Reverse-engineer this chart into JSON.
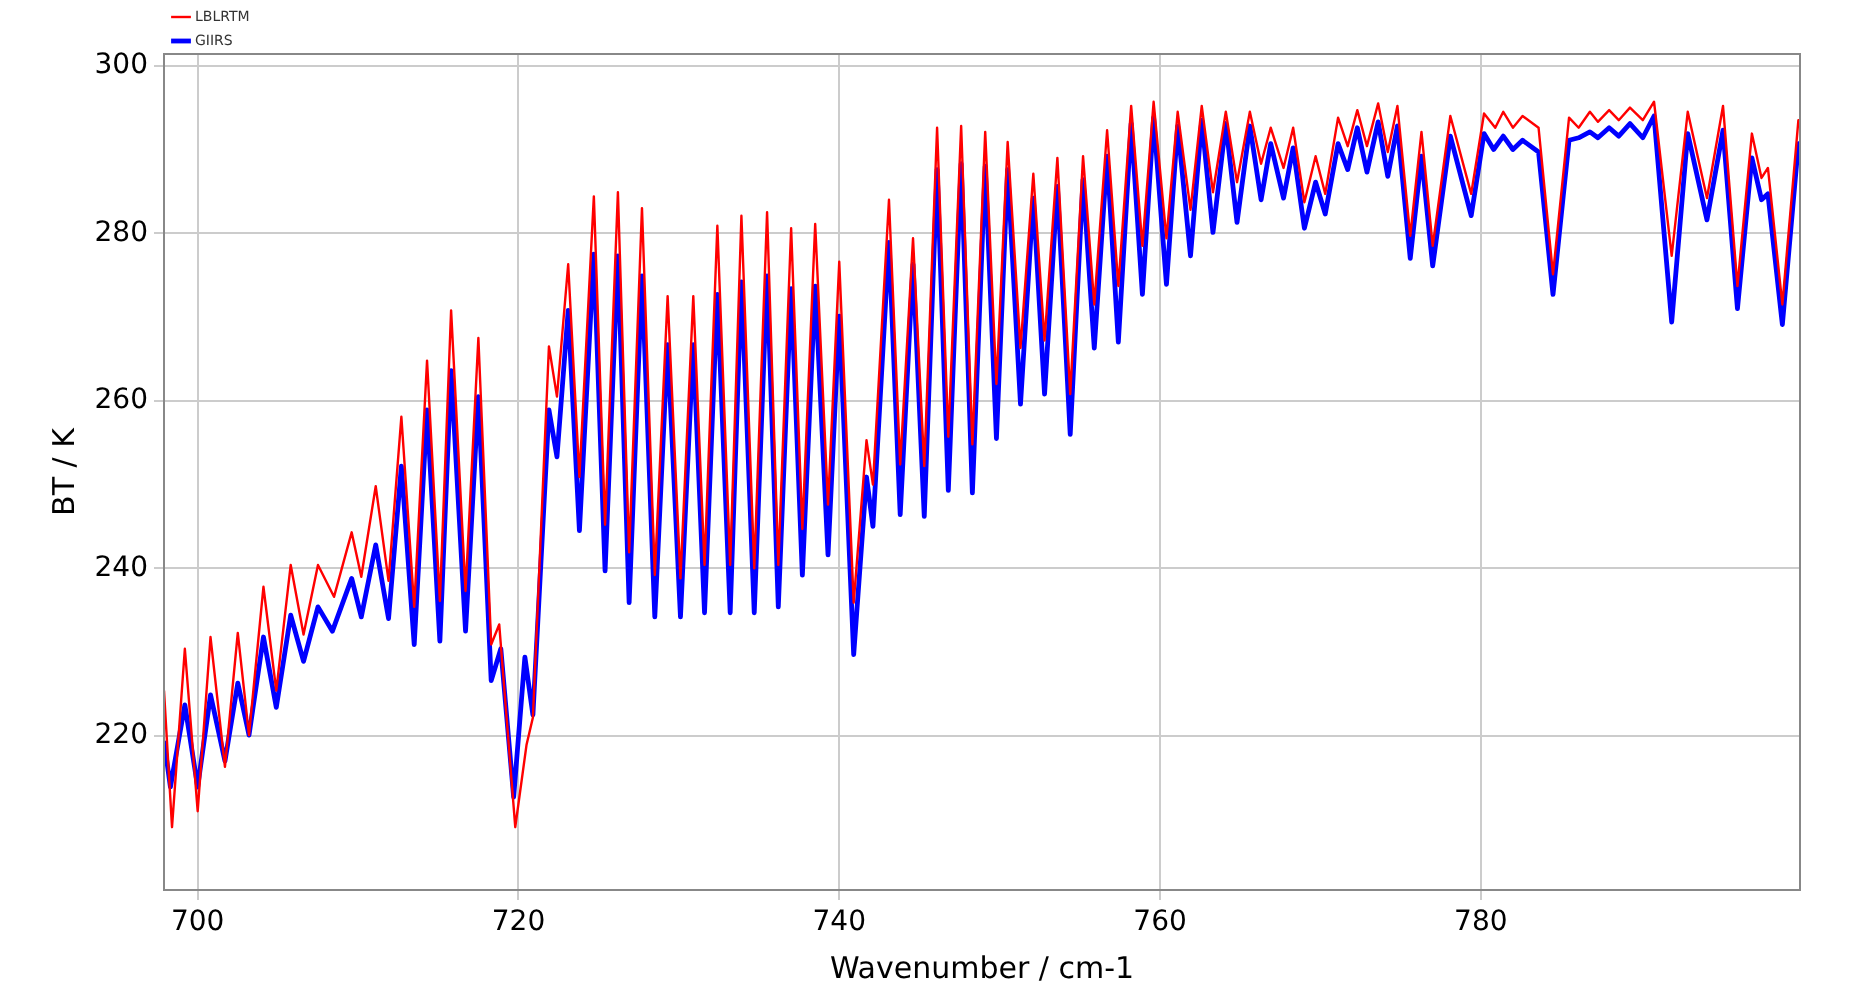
{
  "chart_data": {
    "type": "line",
    "xlabel": "Wavenumber / cm-1",
    "ylabel": "BT / K",
    "xlim": [
      697.9,
      799.9
    ],
    "ylim": [
      201.6,
      301.4
    ],
    "xticks": [
      700,
      720,
      740,
      760,
      780
    ],
    "yticks": [
      220,
      240,
      260,
      280,
      300
    ],
    "grid": true,
    "legend": "top left",
    "series": [
      {
        "name": "LBLRTM",
        "color": "#ff0000",
        "x": [
          697.9,
          698.4,
          699.2,
          700.0,
          700.8,
          701.7,
          702.5,
          703.2,
          704.1,
          704.9,
          705.8,
          706.6,
          707.5,
          708.5,
          709.6,
          710.2,
          711.1,
          711.9,
          712.7,
          713.5,
          714.3,
          715.1,
          715.8,
          716.7,
          717.5,
          718.3,
          718.8,
          719.8,
          720.5,
          720.9,
          721.9,
          722.4,
          723.1,
          723.8,
          724.7,
          725.4,
          726.2,
          726.9,
          727.7,
          728.5,
          729.3,
          730.1,
          730.9,
          731.6,
          732.4,
          733.2,
          733.9,
          734.7,
          735.5,
          736.2,
          737.0,
          737.7,
          738.5,
          739.3,
          740.0,
          740.9,
          741.7,
          742.1,
          743.1,
          743.8,
          744.6,
          745.3,
          746.1,
          746.8,
          747.6,
          748.3,
          749.1,
          749.8,
          750.5,
          751.3,
          752.1,
          752.8,
          753.6,
          754.4,
          755.2,
          755.9,
          756.7,
          757.4,
          758.2,
          758.9,
          759.6,
          760.4,
          761.1,
          761.9,
          762.6,
          763.3,
          764.1,
          764.8,
          765.6,
          766.3,
          766.9,
          767.7,
          768.3,
          769.0,
          769.7,
          770.3,
          771.1,
          771.7,
          772.3,
          772.9,
          773.6,
          774.2,
          774.8,
          775.6,
          776.3,
          777.0,
          778.1,
          779.4,
          780.2,
          780.9,
          781.4,
          782.0,
          782.6,
          783.6,
          784.5,
          785.5,
          786.1,
          786.8,
          787.3,
          788.0,
          788.6,
          789.3,
          790.1,
          790.8,
          791.9,
          792.9,
          794.1,
          795.1,
          796.0,
          796.9,
          797.5,
          797.9,
          798.8,
          799.8,
          799.9
        ],
        "values": [
          225.4,
          209.1,
          230.4,
          211.0,
          231.8,
          216.3,
          232.3,
          220.1,
          237.8,
          225.4,
          240.4,
          232.1,
          240.4,
          236.6,
          244.3,
          239.0,
          249.8,
          238.5,
          258.1,
          235.4,
          264.8,
          236.1,
          270.8,
          237.3,
          267.5,
          230.9,
          233.3,
          209.1,
          218.9,
          222.2,
          266.5,
          260.5,
          276.3,
          250.9,
          284.4,
          245.2,
          284.9,
          241.9,
          283.0,
          239.2,
          272.5,
          238.8,
          272.5,
          240.4,
          280.9,
          240.4,
          282.1,
          240.0,
          282.5,
          240.4,
          280.6,
          244.7,
          281.1,
          247.6,
          276.6,
          235.9,
          255.3,
          250.0,
          284.0,
          252.4,
          279.4,
          252.2,
          292.6,
          255.7,
          292.8,
          254.8,
          292.1,
          262.0,
          290.9,
          266.3,
          287.1,
          267.2,
          289.0,
          260.8,
          289.2,
          271.5,
          292.3,
          273.7,
          295.2,
          278.5,
          295.7,
          279.4,
          294.5,
          282.8,
          295.2,
          284.9,
          294.5,
          286.1,
          294.5,
          288.3,
          292.6,
          287.8,
          292.6,
          283.7,
          289.2,
          284.7,
          293.8,
          290.4,
          294.7,
          290.4,
          295.5,
          289.7,
          295.2,
          279.7,
          292.1,
          278.5,
          294.0,
          284.7,
          294.3,
          292.6,
          294.5,
          292.6,
          294.0,
          292.6,
          275.1,
          293.8,
          292.6,
          294.5,
          293.3,
          294.7,
          293.5,
          295.0,
          293.5,
          295.7,
          277.3,
          294.5,
          284.2,
          295.2,
          273.7,
          291.9,
          286.6,
          287.8,
          271.5,
          293.5,
          293.5
        ]
      },
      {
        "name": "GIIRS",
        "color": "#0000ff",
        "x": [
          697.9,
          698.3,
          699.2,
          700.0,
          700.8,
          701.7,
          702.5,
          703.2,
          704.1,
          704.9,
          705.8,
          706.6,
          707.5,
          708.4,
          709.6,
          710.2,
          711.1,
          711.9,
          712.7,
          713.5,
          714.3,
          715.1,
          715.8,
          716.7,
          717.5,
          718.3,
          718.9,
          719.7,
          720.4,
          720.9,
          721.9,
          722.4,
          723.1,
          723.8,
          724.7,
          725.4,
          726.2,
          726.9,
          727.7,
          728.5,
          729.3,
          730.1,
          730.9,
          731.6,
          732.4,
          733.2,
          733.9,
          734.7,
          735.5,
          736.2,
          737.0,
          737.7,
          738.5,
          739.3,
          740.0,
          740.9,
          741.7,
          742.1,
          743.1,
          743.8,
          744.6,
          745.3,
          746.1,
          746.8,
          747.6,
          748.3,
          749.1,
          749.8,
          750.5,
          751.3,
          752.1,
          752.8,
          753.6,
          754.4,
          755.2,
          755.9,
          756.7,
          757.4,
          758.2,
          758.9,
          759.6,
          760.4,
          761.1,
          761.9,
          762.6,
          763.3,
          764.1,
          764.8,
          765.6,
          766.3,
          766.9,
          767.7,
          768.3,
          769.0,
          769.7,
          770.3,
          771.1,
          771.7,
          772.3,
          772.9,
          773.6,
          774.2,
          774.8,
          775.6,
          776.3,
          777.0,
          778.1,
          779.4,
          780.2,
          780.8,
          781.4,
          782.0,
          782.6,
          783.6,
          784.5,
          785.5,
          786.1,
          786.8,
          787.3,
          788.0,
          788.6,
          789.3,
          790.1,
          790.8,
          791.9,
          792.9,
          794.1,
          795.1,
          796.0,
          796.9,
          797.5,
          797.9,
          798.8,
          799.8,
          799.9
        ],
        "values": [
          219.4,
          213.9,
          223.7,
          213.9,
          224.9,
          217.0,
          226.3,
          220.1,
          231.8,
          223.4,
          234.4,
          228.9,
          235.4,
          232.5,
          238.8,
          234.2,
          242.8,
          234.0,
          252.2,
          230.9,
          258.9,
          231.3,
          263.6,
          232.5,
          260.5,
          226.6,
          230.4,
          212.7,
          229.4,
          222.5,
          258.9,
          253.3,
          270.8,
          244.5,
          277.5,
          239.7,
          277.3,
          235.9,
          274.9,
          234.2,
          266.7,
          234.2,
          266.7,
          234.7,
          272.7,
          234.7,
          274.2,
          234.7,
          274.9,
          235.4,
          273.4,
          239.2,
          273.7,
          241.6,
          270.1,
          229.7,
          250.9,
          245.0,
          278.9,
          246.4,
          276.3,
          246.2,
          287.6,
          249.3,
          288.3,
          249.0,
          288.0,
          255.5,
          287.6,
          259.6,
          284.2,
          260.8,
          285.6,
          256.0,
          286.4,
          266.3,
          289.2,
          267.0,
          293.1,
          272.7,
          293.8,
          273.9,
          292.8,
          277.3,
          293.5,
          280.1,
          293.1,
          281.3,
          292.8,
          284.0,
          290.7,
          284.2,
          290.2,
          280.6,
          286.1,
          282.3,
          290.7,
          287.6,
          292.6,
          287.3,
          293.3,
          286.8,
          292.8,
          277.0,
          289.2,
          276.1,
          291.6,
          282.1,
          291.9,
          290.0,
          291.6,
          290.0,
          291.1,
          289.7,
          272.7,
          291.1,
          291.4,
          292.1,
          291.4,
          292.6,
          291.6,
          293.1,
          291.4,
          294.0,
          269.4,
          291.9,
          281.6,
          292.3,
          271.0,
          289.0,
          284.0,
          284.7,
          269.1,
          290.7,
          290.7
        ]
      }
    ]
  }
}
